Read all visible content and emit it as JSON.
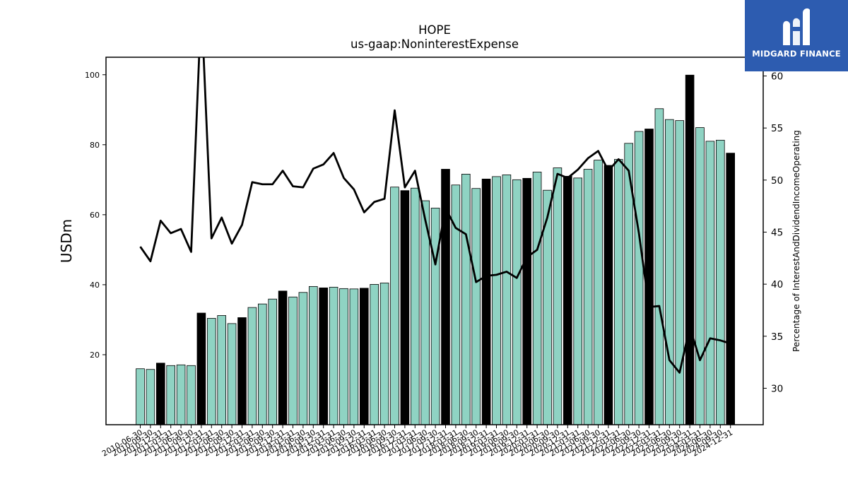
{
  "chart_data": {
    "type": "bar",
    "title": "HOPE",
    "subtitle": "us-gaap:NoninterestExpense",
    "ylabel": "USDm",
    "y2label": "Percentage of InterestAndDividendIncomeOperating",
    "ylim": [
      0,
      105
    ],
    "y2lim": [
      26.5,
      61.8
    ],
    "y_ticks": [
      20,
      40,
      60,
      80,
      100
    ],
    "y2_ticks": [
      30,
      35,
      40,
      45,
      50,
      55,
      60
    ],
    "grid": false,
    "categories": [
      "2010-06-30",
      "2010-09-30",
      "2010-12-31",
      "2011-03-31",
      "2011-06-30",
      "2011-09-30",
      "2011-12-31",
      "2012-03-31",
      "2012-06-30",
      "2012-09-30",
      "2012-12-31",
      "2013-03-31",
      "2013-06-30",
      "2013-09-30",
      "2013-12-31",
      "2014-03-31",
      "2014-06-30",
      "2014-09-30",
      "2014-12-31",
      "2015-03-31",
      "2015-06-30",
      "2015-09-30",
      "2015-12-31",
      "2016-03-31",
      "2016-06-30",
      "2016-09-30",
      "2016-12-31",
      "2017-03-31",
      "2017-06-30",
      "2017-09-30",
      "2017-12-31",
      "2018-03-31",
      "2018-06-30",
      "2018-09-30",
      "2018-12-31",
      "2019-03-31",
      "2019-06-30",
      "2019-09-30",
      "2019-12-31",
      "2020-03-31",
      "2020-06-30",
      "2020-09-30",
      "2020-12-31",
      "2021-03-31",
      "2021-06-30",
      "2021-09-30",
      "2021-12-31",
      "2022-03-31",
      "2022-06-30",
      "2022-09-30",
      "2022-12-31",
      "2023-03-31",
      "2023-06-30",
      "2023-09-30",
      "2023-12-31",
      "2024-03-31",
      "2024-06-30",
      "2024-09-30",
      "2024-12-31"
    ],
    "visible_tick_labels": [
      "2010-06-30",
      "2010-09-30",
      "2010-12-31",
      "2011-03-31",
      "2011-06-30",
      "2011-09-30",
      "2011-12-31",
      "2012-03-31",
      "2012-06-30",
      "2012-09-30",
      "2012-12-31",
      "2013-03-31",
      "2013-06-30",
      "2013-09-30",
      "2013-12-31",
      "2014-03-31",
      "2014-06-30",
      "2014-09-30",
      "2014-12-31",
      "2015-03-31",
      "2015-06-30",
      "2015-09-30",
      "2015-12-31",
      "2016-03-31",
      "2016-06-30",
      "2016-09-30",
      "2016-12-31",
      "2017-03-31",
      "2017-06-30",
      "2017-09-30",
      "2017-12-31",
      "2018-03-31",
      "2018-06-30",
      "2018-09-30",
      "2018-12-31",
      "2019-03-31",
      "2019-06-30",
      "2019-09-30",
      "2019-12-31",
      "2020-03-31",
      "2020-06-30",
      "2020-09-30",
      "2020-12-31",
      "2021-03-31",
      "2021-06-30",
      "2021-09-30",
      "2021-12-31",
      "2022-03-31",
      "2022-06-30",
      "2022-09-30",
      "2022-12-31",
      "2023-03-31",
      "2023-06-30",
      "2023-09-30",
      "2023-12-31",
      "2024-03-31",
      "2024-06-30",
      "2024-09-30",
      "2024-12-31"
    ],
    "series": [
      {
        "type": "bar",
        "values": [
          16.0,
          15.8,
          17.6,
          16.9,
          17.1,
          16.9,
          31.9,
          30.4,
          31.2,
          28.9,
          30.6,
          33.5,
          34.5,
          35.9,
          38.2,
          36.5,
          37.8,
          39.5,
          39.1,
          39.3,
          38.9,
          38.8,
          39.0,
          40.1,
          40.5,
          67.9,
          66.9,
          67.6,
          64.0,
          61.9,
          73.0,
          68.5,
          71.6,
          67.5,
          70.2,
          70.9,
          71.4,
          70.0,
          70.4,
          72.2,
          67.0,
          73.4,
          71.0,
          70.5,
          73.0,
          75.6,
          74.1,
          75.8,
          80.4,
          83.8,
          84.5,
          90.3,
          87.2,
          86.9,
          99.9,
          84.9,
          81.0,
          81.3,
          77.6
        ],
        "highlight_year_end": true
      },
      {
        "type": "line",
        "axis": "right",
        "values": [
          43.6,
          42.2,
          46.1,
          44.9,
          45.3,
          43.1,
          67.0,
          44.4,
          46.4,
          43.9,
          45.7,
          49.8,
          49.6,
          49.6,
          50.9,
          49.4,
          49.3,
          51.1,
          51.5,
          52.6,
          50.2,
          49.1,
          46.9,
          47.9,
          48.2,
          56.7,
          49.3,
          50.9,
          46.2,
          41.9,
          47.3,
          45.4,
          44.8,
          40.2,
          40.8,
          40.9,
          41.2,
          40.6,
          42.6,
          43.3,
          46.4,
          50.6,
          50.2,
          51.0,
          52.1,
          52.8,
          50.9,
          52.0,
          50.9,
          44.9,
          37.8,
          37.9,
          32.7,
          31.5,
          35.9,
          32.7,
          34.8,
          34.6,
          34.3
        ]
      }
    ],
    "colors": {
      "bar": "#8fd3c3",
      "bar_highlight": "#000000",
      "bar_edge": "#000000",
      "line": "#000000",
      "logo_bg": "#2d5cb0"
    }
  },
  "logo": {
    "text": "MIDGARD FINANCE",
    "icon": "midgard-logo-icon"
  }
}
